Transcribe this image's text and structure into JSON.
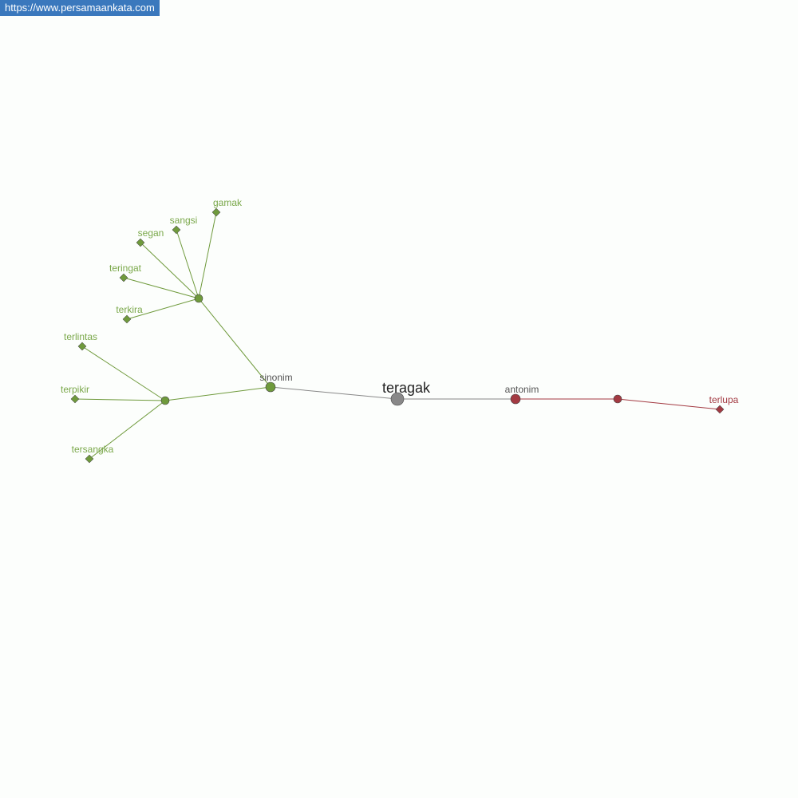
{
  "site_label": "https://www.persamaankata.com",
  "colors": {
    "root": "#888888",
    "synonym": "#6f9a3c",
    "synonym_label": "#7aa84a",
    "antonym": "#a33a42",
    "category_label": "#555555",
    "root_label": "#222222"
  },
  "root": {
    "label": "teragak"
  },
  "categories": [
    {
      "label": "sinonim",
      "type": "synonym"
    },
    {
      "label": "antonim",
      "type": "antonym"
    }
  ],
  "synonyms": [
    "gamak",
    "sangsi",
    "segan",
    "teringat",
    "terkira",
    "terlintas",
    "terpikir",
    "tersangka"
  ],
  "antonyms": [
    "terlupa"
  ]
}
